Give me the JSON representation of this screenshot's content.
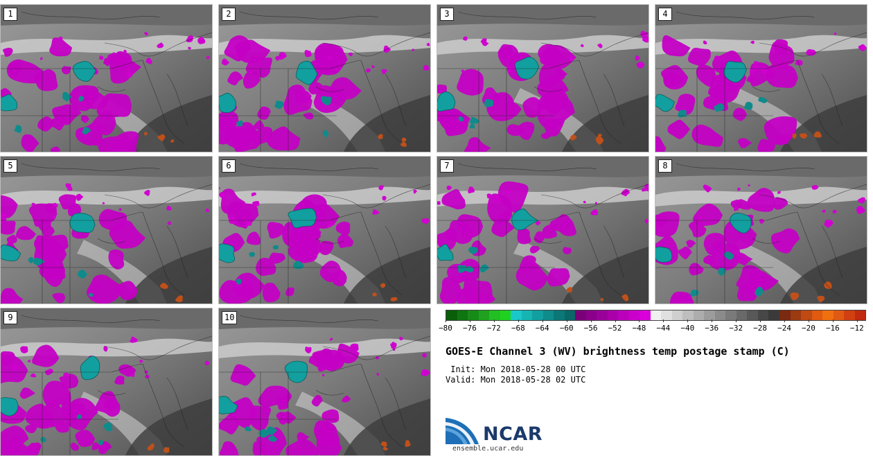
{
  "panels": [
    "1",
    "2",
    "3",
    "4",
    "5",
    "6",
    "7",
    "8",
    "9",
    "10"
  ],
  "colorbar": {
    "colors": [
      "#0a5e0a",
      "#0f7510",
      "#178b17",
      "#1fa21f",
      "#22bf22",
      "#1fd21f",
      "#19c9c9",
      "#17b4b4",
      "#129f9f",
      "#0f8b8b",
      "#0c7777",
      "#0a6767",
      "#7a007a",
      "#8a008a",
      "#9a009a",
      "#aa00aa",
      "#bb00bb",
      "#cc00cc",
      "#d900d9",
      "#f0f0f0",
      "#e0e0e0",
      "#cfcfcf",
      "#bebebe",
      "#adadad",
      "#9c9c9c",
      "#8b8b8b",
      "#7a7a7a",
      "#696969",
      "#585858",
      "#474747",
      "#3a3a3a",
      "#7a2a10",
      "#9c3a12",
      "#c04a12",
      "#e05a10",
      "#f07010",
      "#e05a14",
      "#d04010",
      "#c02a0e"
    ],
    "tick_labels": [
      "−80",
      "−76",
      "−72",
      "−68",
      "−64",
      "−60",
      "−56",
      "−52",
      "−48",
      "−44",
      "−40",
      "−36",
      "−32",
      "−28",
      "−24",
      "−20",
      "−16",
      "−12"
    ]
  },
  "title": "GOES-E Channel 3 (WV) brightness temp postage stamp (C)",
  "init": " Init: Mon 2018-05-28 00 UTC",
  "valid": "Valid: Mon 2018-05-28 02 UTC",
  "logo": {
    "text": "NCAR",
    "url": "ensemble.ucar.edu"
  }
}
